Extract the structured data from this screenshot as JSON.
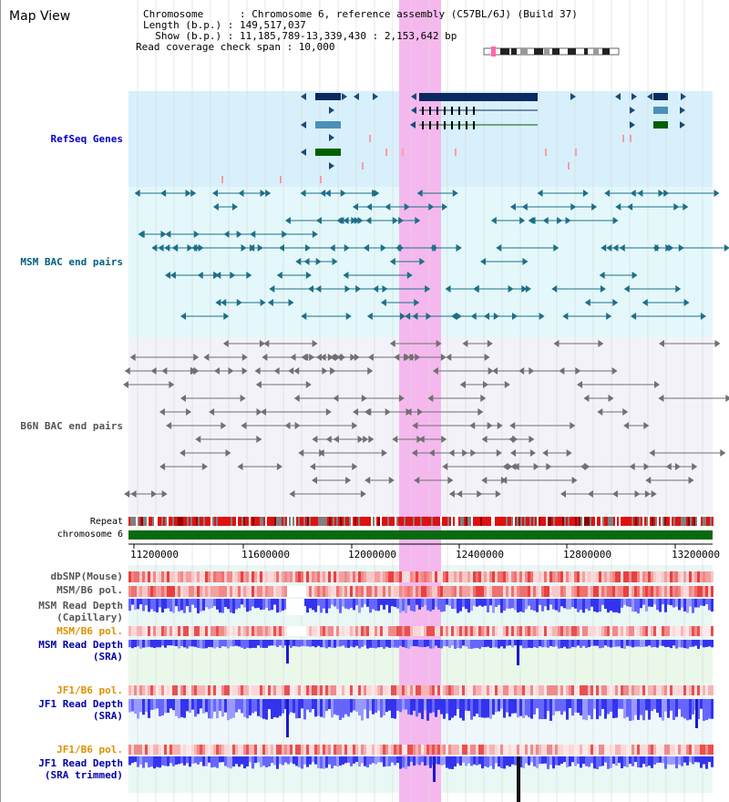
{
  "header": {
    "title": "Map View",
    "info_lines": [
      "Chromosome      : Chromosome 6, reference assembly (C57BL/6J) (Build 37)",
      "Length (b.p.) : 149,517,037",
      "  Show (b.p.) : 11,185,789-13,339,430 : 2,153,642 bp",
      "Read coverage check span : 10,000"
    ]
  },
  "tracks": {
    "refseq": "RefSeq Genes",
    "msm_bac": "MSM BAC end pairs",
    "b6n_bac": "B6N BAC end pairs",
    "repeat": "Repeat",
    "chromosome": "chromosome 6",
    "dbsnp": "dbSNP(Mouse)",
    "msm_b6_pol_1": "MSM/B6 pol.",
    "msm_read_depth_cap": "MSM Read Depth\n(Capillary)",
    "msm_b6_pol_2": "MSM/B6 pol.",
    "msm_read_depth_sra": "MSM Read Depth\n(SRA)",
    "jf1_b6_pol_1": "JF1/B6 pol.",
    "jf1_read_depth_sra": "JF1 Read Depth\n(SRA)",
    "jf1_b6_pol_2": "JF1/B6 pol.",
    "jf1_read_depth_trim": "JF1 Read Depth\n(SRA trimmed)"
  },
  "axis": {
    "ticks": [
      "11200000",
      "11600000",
      "12000000",
      "12400000",
      "12800000",
      "13200000"
    ]
  },
  "colors": {
    "refseq_label": "#0000cc",
    "msm_label": "#006080",
    "b6n_label": "#555555",
    "pol_label": "#e09000",
    "depth_label": "#0000aa",
    "highlight": "#f5b8ee"
  }
}
